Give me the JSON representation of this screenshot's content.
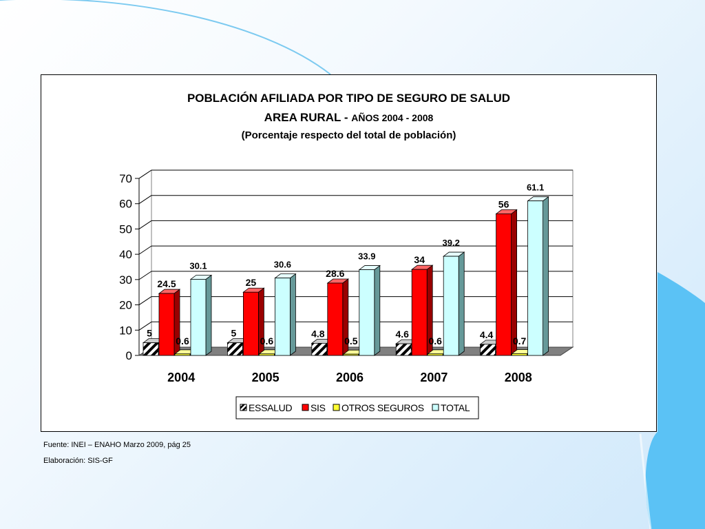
{
  "chart_data": {
    "type": "bar",
    "title_line1": "POBLACIÓN AFILIADA POR TIPO DE SEGURO DE SALUD",
    "title_line2_main": "AREA RURAL - ",
    "title_line2_years": "AÑOS 2004 - 2008",
    "subtitle": "(Porcentaje respecto del total de población)",
    "categories": [
      "2004",
      "2005",
      "2006",
      "2007",
      "2008"
    ],
    "ylim": [
      0,
      70
    ],
    "yticks": [
      "0",
      "10",
      "20",
      "30",
      "40",
      "50",
      "60",
      "70"
    ],
    "grid": true,
    "legend_position": "bottom",
    "series": [
      {
        "name": "ESSALUD",
        "values": [
          5,
          5,
          4.8,
          4.6,
          4.4
        ],
        "labels": [
          "5",
          "5",
          "4.8",
          "4.6",
          "4.4"
        ],
        "pattern": "hatched",
        "color": "#ffffff"
      },
      {
        "name": "SIS",
        "values": [
          24.5,
          25,
          28.6,
          34,
          56
        ],
        "labels": [
          "24.5",
          "25",
          "28.6",
          "34",
          "56"
        ],
        "color": "#ff0000"
      },
      {
        "name": "OTROS SEGUROS",
        "values": [
          0.6,
          0.6,
          0.5,
          0.6,
          0.7
        ],
        "labels": [
          "0.6",
          "0.6",
          "0.5",
          "0.6",
          "0.7"
        ],
        "color": "#ffff33"
      },
      {
        "name": "TOTAL",
        "values": [
          30.1,
          30.6,
          33.9,
          39.2,
          61.1
        ],
        "labels": [
          "30.1",
          "30.6",
          "33.9",
          "39.2",
          "61.1"
        ],
        "color": "#ccffff"
      }
    ]
  },
  "footer": {
    "source": "Fuente: INEI – ENAHO Marzo 2009, pág 25",
    "credit": "Elaboración: SIS-GF"
  },
  "colors": {
    "background_accent": "#5bc2f5",
    "floor": "#808080",
    "gridline": "#000000"
  }
}
